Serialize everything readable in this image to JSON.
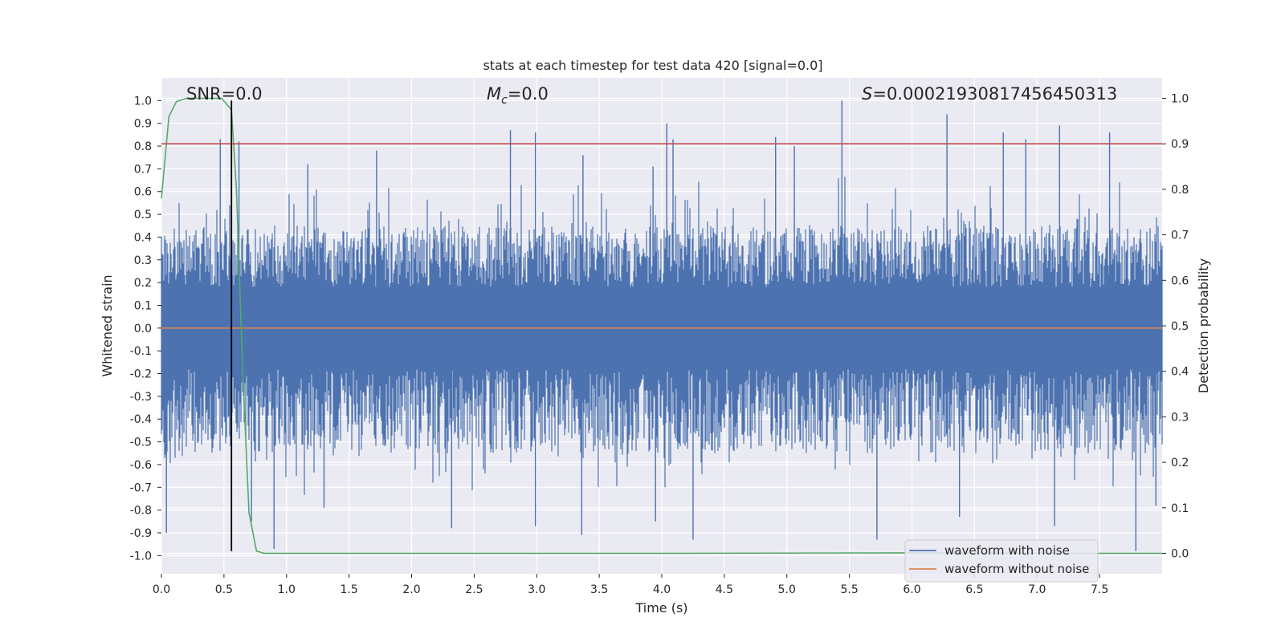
{
  "chart_data": {
    "type": "line",
    "title": "stats at each timestep for test data 420 [signal=0.0]",
    "xlabel": "Time (s)",
    "ylabel": "Whitened strain",
    "y2label": "Detection probability",
    "xlim": [
      0.0,
      8.0
    ],
    "ylim": [
      -1.08,
      1.1
    ],
    "y2lim": [
      -0.045,
      1.045
    ],
    "x_ticks": [
      0.0,
      0.5,
      1.0,
      1.5,
      2.0,
      2.5,
      3.0,
      3.5,
      4.0,
      4.5,
      5.0,
      5.5,
      6.0,
      6.5,
      7.0,
      7.5
    ],
    "y_ticks": [
      -1.0,
      -0.9,
      -0.8,
      -0.7,
      -0.6,
      -0.5,
      -0.4,
      -0.3,
      -0.2,
      -0.1,
      0.0,
      0.1,
      0.2,
      0.3,
      0.4,
      0.5,
      0.6,
      0.7,
      0.8,
      0.9,
      1.0
    ],
    "y2_ticks": [
      0.0,
      0.1,
      0.2,
      0.3,
      0.4,
      0.5,
      0.6,
      0.7,
      0.8,
      0.9,
      1.0
    ],
    "grid": true,
    "legend_position": "bottom-right",
    "annotations": {
      "snr": "SNR=0.0",
      "mc_label": "M",
      "mc_sub": "c",
      "mc_value": "=0.0",
      "s_label": "S",
      "s_value": "=0.0002193081745645031​3"
    },
    "series": [
      {
        "name": "waveform with noise",
        "axis": "left",
        "color": "#4c72b0",
        "style": "noise",
        "t_range": [
          0.0,
          8.0
        ],
        "typical_min": -0.55,
        "typical_max": 0.45,
        "peaks": [
          {
            "x": 0.47,
            "y": 0.83
          },
          {
            "x": 0.62,
            "y": 0.82
          },
          {
            "x": 1.17,
            "y": 0.72
          },
          {
            "x": 1.72,
            "y": 0.78
          },
          {
            "x": 2.79,
            "y": 0.87
          },
          {
            "x": 2.99,
            "y": 0.86
          },
          {
            "x": 3.93,
            "y": 0.71
          },
          {
            "x": 4.04,
            "y": 0.9
          },
          {
            "x": 4.09,
            "y": 0.83
          },
          {
            "x": 4.91,
            "y": 0.84
          },
          {
            "x": 5.06,
            "y": 0.8
          },
          {
            "x": 5.44,
            "y": 1.0
          },
          {
            "x": 6.28,
            "y": 0.94
          },
          {
            "x": 6.73,
            "y": 0.86
          },
          {
            "x": 7.18,
            "y": 0.89
          },
          {
            "x": 7.58,
            "y": 0.86
          },
          {
            "x": 6.91,
            "y": 0.83
          },
          {
            "x": 3.37,
            "y": 0.76
          },
          {
            "x": 0.04,
            "y": -0.9
          },
          {
            "x": 0.72,
            "y": -0.85
          },
          {
            "x": 0.9,
            "y": -0.97
          },
          {
            "x": 2.32,
            "y": -0.88
          },
          {
            "x": 2.99,
            "y": -0.87
          },
          {
            "x": 3.36,
            "y": -0.91
          },
          {
            "x": 4.25,
            "y": -0.93
          },
          {
            "x": 5.72,
            "y": -0.93
          },
          {
            "x": 6.38,
            "y": -0.83
          },
          {
            "x": 7.14,
            "y": -0.87
          },
          {
            "x": 7.79,
            "y": -0.98
          },
          {
            "x": 7.95,
            "y": -0.78
          },
          {
            "x": 3.95,
            "y": -0.85
          },
          {
            "x": 1.3,
            "y": -0.79
          }
        ]
      },
      {
        "name": "waveform without noise",
        "axis": "left",
        "color": "#dd8452",
        "x": [
          0.0,
          8.0
        ],
        "y": [
          0.0,
          0.0
        ]
      },
      {
        "name": "detection probability",
        "axis": "right",
        "color": "#55a868",
        "x": [
          0.0,
          0.06,
          0.12,
          0.2,
          0.3,
          0.4,
          0.48,
          0.56,
          0.6,
          0.65,
          0.7,
          0.76,
          0.82,
          1.0,
          2.0,
          4.0,
          6.0,
          7.0,
          8.0
        ],
        "y": [
          0.78,
          0.96,
          0.993,
          1.0,
          1.0,
          1.0,
          1.0,
          0.975,
          0.8,
          0.4,
          0.09,
          0.005,
          0.0,
          0.0,
          0.0,
          0.0,
          0.001,
          0.0,
          0.0
        ]
      },
      {
        "name": "threshold",
        "axis": "right",
        "color": "#c44e52",
        "x": [
          0.0,
          8.0
        ],
        "y": [
          0.9,
          0.9
        ]
      },
      {
        "name": "marker",
        "axis": "left",
        "color": "#000000",
        "x": [
          0.56,
          0.56
        ],
        "y": [
          -0.98,
          1.0
        ]
      }
    ],
    "legend": [
      "waveform with noise",
      "waveform without noise"
    ]
  }
}
